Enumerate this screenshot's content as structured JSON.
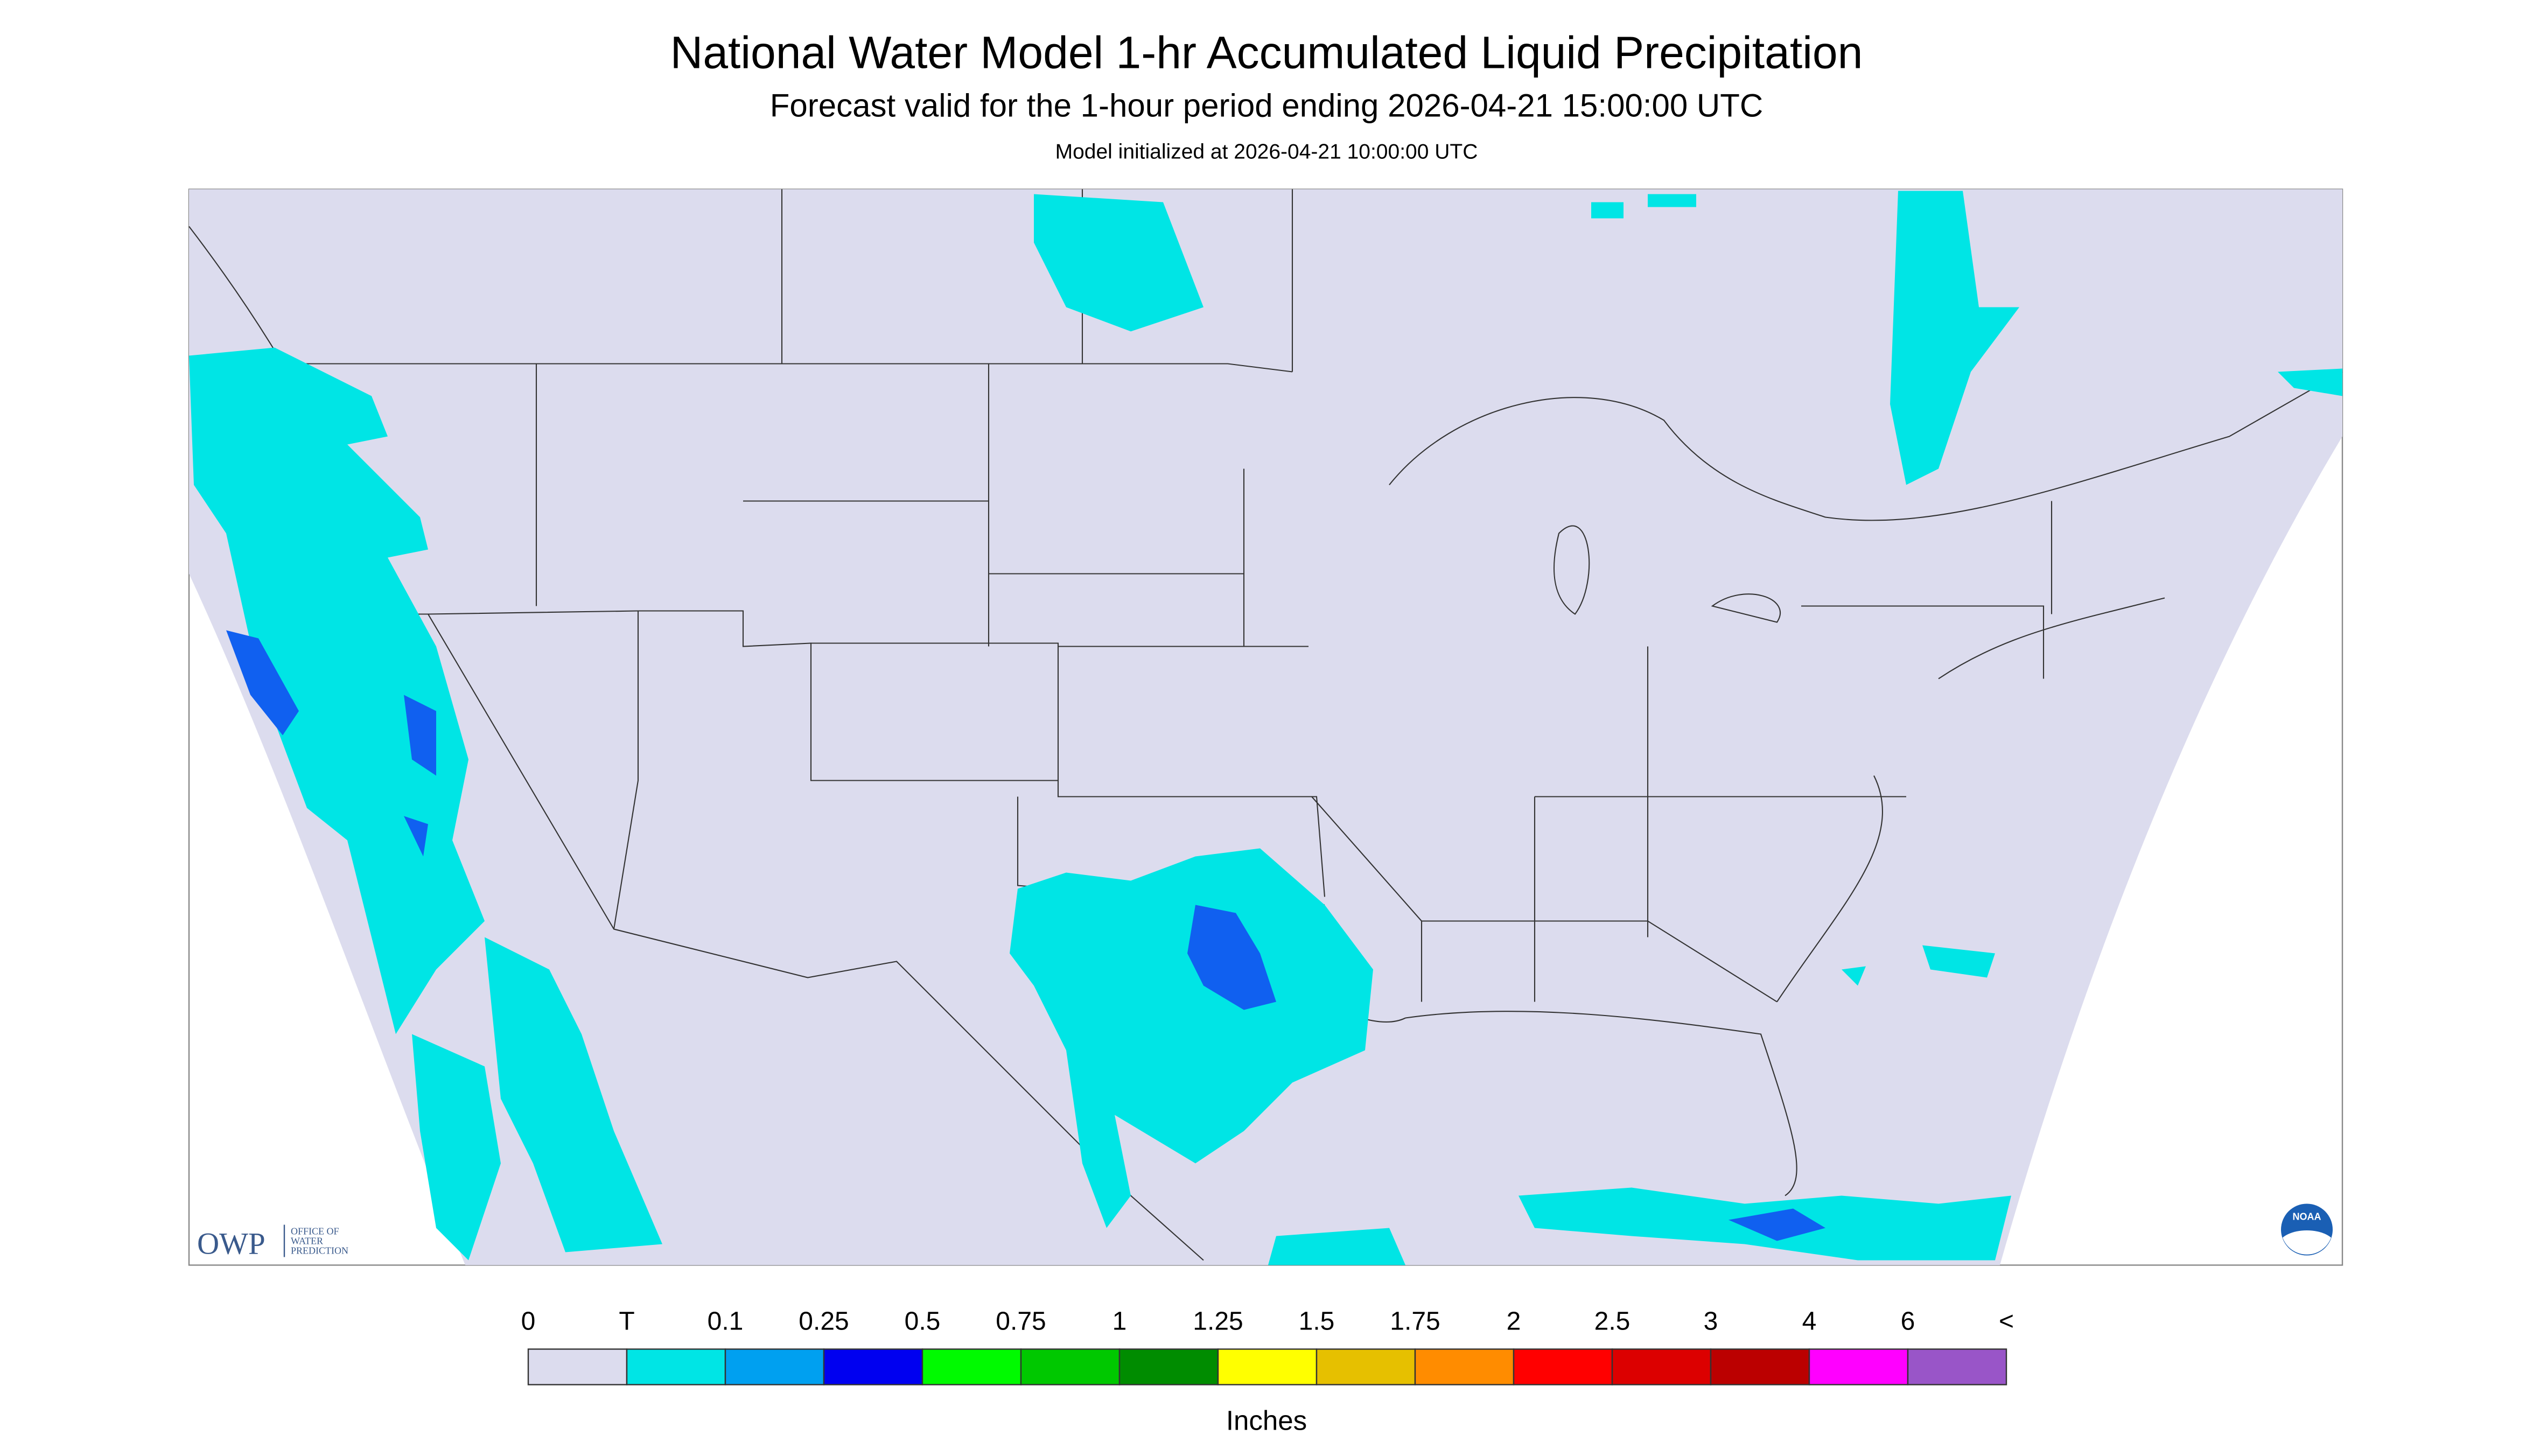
{
  "header": {
    "title": "National Water Model 1-hr Accumulated Liquid Precipitation",
    "subtitle": "Forecast valid for the 1-hour period ending 2026-04-21 15:00:00 UTC",
    "note": "Model initialized at 2026-04-21 10:00:00 UTC"
  },
  "logo": {
    "acronym": "OWP",
    "line1": "OFFICE OF",
    "line2": "WATER",
    "line3": "PREDICTION",
    "noaa": "NOAA"
  },
  "legend": {
    "labels": [
      "0",
      "T",
      "0.1",
      "0.25",
      "0.5",
      "0.75",
      "1",
      "1.25",
      "1.5",
      "1.75",
      "2",
      "2.5",
      "3",
      "4",
      "6",
      "<"
    ],
    "colors": [
      "#dcdcee",
      "#00e5e5",
      "#00a0f0",
      "#0000f0",
      "#00fa00",
      "#00c800",
      "#008c00",
      "#ffff00",
      "#e6c000",
      "#ff8c00",
      "#ff0000",
      "#dc0000",
      "#bb0000",
      "#ff00ff",
      "#9955c8"
    ],
    "units": "Inches"
  }
}
